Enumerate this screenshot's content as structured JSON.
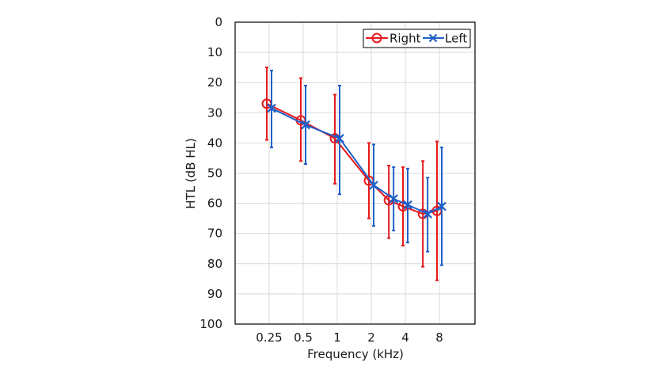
{
  "chart_data": {
    "type": "line",
    "xlabel": "Frequency (kHz)",
    "ylabel": "HTL (dB HL)",
    "x_ticks": [
      "0.25",
      "0.5",
      "1",
      "2",
      "4",
      "8"
    ],
    "x_scale": "log2",
    "ylim": [
      0,
      100
    ],
    "y_ticks": [
      0,
      10,
      20,
      30,
      40,
      50,
      60,
      70,
      80,
      90,
      100
    ],
    "y_inverted": true,
    "grid": true,
    "legend_position": "top-right",
    "series": [
      {
        "name": "Right",
        "color": "#e41a1c",
        "marker": "circle",
        "x": [
          0.25,
          0.5,
          1,
          2,
          3,
          4,
          6,
          8
        ],
        "y": [
          27,
          32.5,
          38.5,
          52.5,
          59,
          61,
          63.5,
          62.5
        ],
        "err_low": [
          15,
          18.5,
          24,
          40,
          47.5,
          48,
          46,
          39.5
        ],
        "err_high": [
          39,
          46,
          53.5,
          65,
          71.5,
          74,
          81,
          85.5
        ]
      },
      {
        "name": "Left",
        "color": "#1f5fc8",
        "marker": "x",
        "x": [
          0.25,
          0.5,
          1,
          2,
          3,
          4,
          6,
          8
        ],
        "y": [
          28.5,
          34,
          38.5,
          54,
          58.5,
          60.5,
          63.5,
          61
        ],
        "err_low": [
          16,
          21,
          21,
          40.5,
          48,
          48.5,
          51.5,
          41.5
        ],
        "err_high": [
          41.5,
          47,
          57,
          67.5,
          69,
          73,
          76,
          80.5
        ]
      }
    ]
  }
}
